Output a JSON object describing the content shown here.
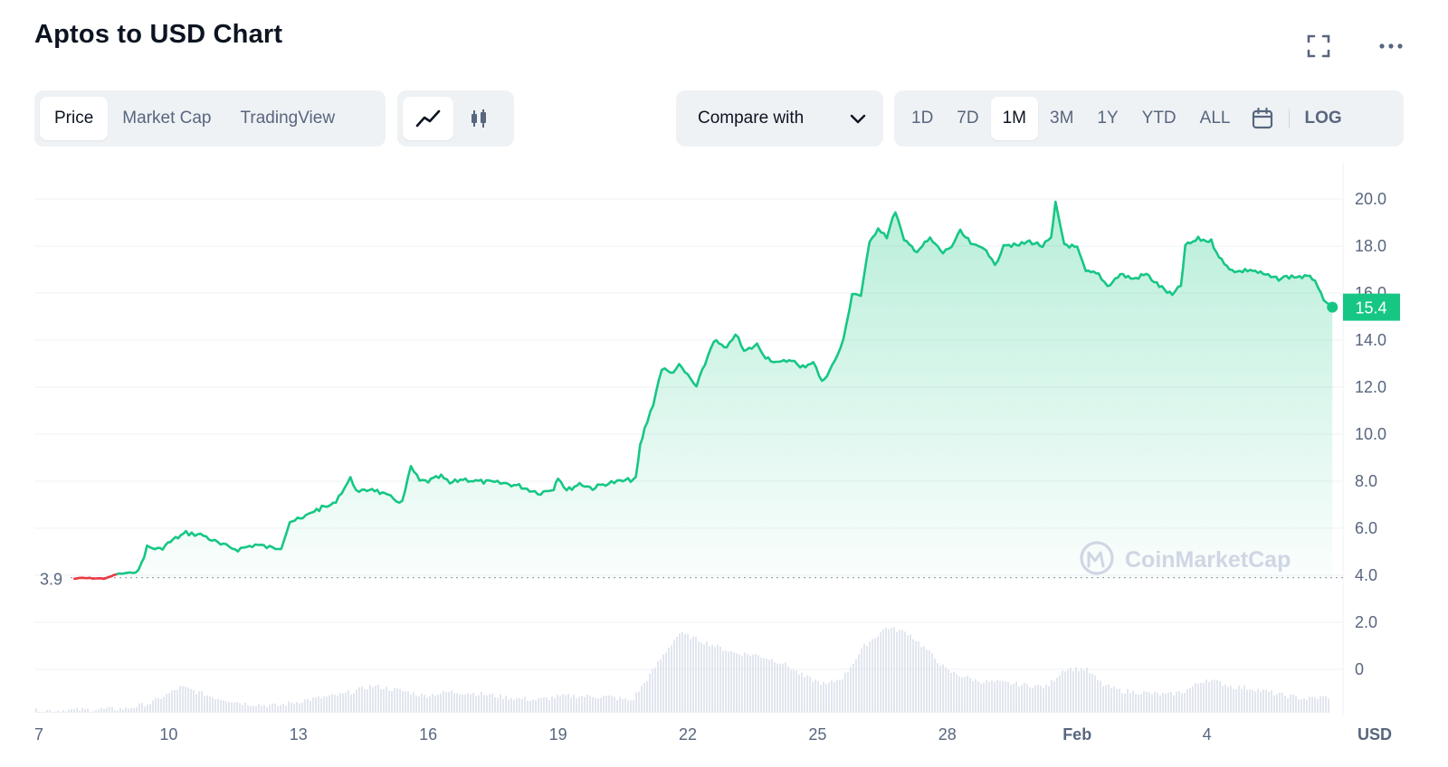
{
  "header": {
    "title": "Aptos to USD Chart"
  },
  "icons": {
    "fullscreen": "fullscreen-icon",
    "more": "more-dots-icon",
    "line": "line-chart-icon",
    "candle": "candlestick-icon",
    "calendar": "calendar-icon",
    "chevron": "chevron-down-icon"
  },
  "controls": {
    "metric_tabs": [
      {
        "label": "Price",
        "active": true
      },
      {
        "label": "Market Cap",
        "active": false
      },
      {
        "label": "TradingView",
        "active": false
      }
    ],
    "chart_type": "line",
    "compare_label": "Compare with",
    "range_tabs": [
      {
        "label": "1D"
      },
      {
        "label": "7D"
      },
      {
        "label": "1M",
        "active": true
      },
      {
        "label": "3M"
      },
      {
        "label": "1Y"
      },
      {
        "label": "YTD"
      },
      {
        "label": "ALL"
      }
    ],
    "log_label": "LOG"
  },
  "colors": {
    "up": "#16c784",
    "down": "#ea3943",
    "grid": "#eff2f5",
    "text": "#58667e",
    "volume": "#cfd6e4",
    "badge": "#16c784"
  },
  "watermark": "CoinMarketCap",
  "chart_data": {
    "type": "line",
    "y_ticks": [
      "20.0",
      "18.0",
      "16.0",
      "14.0",
      "12.0",
      "10.0",
      "8.0",
      "6.0",
      "4.0",
      "2.0",
      "0"
    ],
    "x_ticks": [
      "7",
      "10",
      "13",
      "16",
      "19",
      "22",
      "25",
      "28",
      "Feb",
      "4"
    ],
    "currency_label": "USD",
    "ylim": [
      0,
      20.8
    ],
    "open_price": 3.9,
    "open_label": "3.9",
    "last_price": 15.4,
    "last_label": "15.4",
    "price_series": [
      [
        7.8,
        3.85
      ],
      [
        8.0,
        3.88
      ],
      [
        8.3,
        3.87
      ],
      [
        8.5,
        3.86
      ],
      [
        8.6,
        3.9
      ],
      [
        8.8,
        4.05
      ],
      [
        9.1,
        4.1
      ],
      [
        9.3,
        4.15
      ],
      [
        9.5,
        5.2
      ],
      [
        9.8,
        5.1
      ],
      [
        10.1,
        5.5
      ],
      [
        10.4,
        5.8
      ],
      [
        10.8,
        5.7
      ],
      [
        11.2,
        5.3
      ],
      [
        11.6,
        5.1
      ],
      [
        12.0,
        5.3
      ],
      [
        12.4,
        5.15
      ],
      [
        12.6,
        5.2
      ],
      [
        12.8,
        6.3
      ],
      [
        13.1,
        6.4
      ],
      [
        13.3,
        6.7
      ],
      [
        13.6,
        6.9
      ],
      [
        13.8,
        7.0
      ],
      [
        14.2,
        8.1
      ],
      [
        14.4,
        7.5
      ],
      [
        14.7,
        7.7
      ],
      [
        15.0,
        7.4
      ],
      [
        15.4,
        7.1
      ],
      [
        15.6,
        8.6
      ],
      [
        15.8,
        8.0
      ],
      [
        16.0,
        8.0
      ],
      [
        16.3,
        8.2
      ],
      [
        16.5,
        7.9
      ],
      [
        16.8,
        8.1
      ],
      [
        17.1,
        8.0
      ],
      [
        17.4,
        7.95
      ],
      [
        17.8,
        7.9
      ],
      [
        18.1,
        7.8
      ],
      [
        18.4,
        7.6
      ],
      [
        18.6,
        7.5
      ],
      [
        18.9,
        7.7
      ],
      [
        19.0,
        8.2
      ],
      [
        19.2,
        7.6
      ],
      [
        19.5,
        7.9
      ],
      [
        19.8,
        7.7
      ],
      [
        20.1,
        7.9
      ],
      [
        20.5,
        8.0
      ],
      [
        20.8,
        8.1
      ],
      [
        20.9,
        9.5
      ],
      [
        21.0,
        10.2
      ],
      [
        21.2,
        11.3
      ],
      [
        21.4,
        12.8
      ],
      [
        21.6,
        12.6
      ],
      [
        21.8,
        12.9
      ],
      [
        22.0,
        12.5
      ],
      [
        22.2,
        12.0
      ],
      [
        22.4,
        13.0
      ],
      [
        22.6,
        14.0
      ],
      [
        22.9,
        13.6
      ],
      [
        23.1,
        14.3
      ],
      [
        23.3,
        13.5
      ],
      [
        23.6,
        13.8
      ],
      [
        23.8,
        13.3
      ],
      [
        24.1,
        13.0
      ],
      [
        24.4,
        13.2
      ],
      [
        24.6,
        12.8
      ],
      [
        24.9,
        13.1
      ],
      [
        25.1,
        12.2
      ],
      [
        25.4,
        13.1
      ],
      [
        25.6,
        14.0
      ],
      [
        25.8,
        16.0
      ],
      [
        26.0,
        15.9
      ],
      [
        26.2,
        18.1
      ],
      [
        26.4,
        18.8
      ],
      [
        26.6,
        18.4
      ],
      [
        26.8,
        19.5
      ],
      [
        27.0,
        18.2
      ],
      [
        27.3,
        17.8
      ],
      [
        27.6,
        18.3
      ],
      [
        27.9,
        17.7
      ],
      [
        28.1,
        18.0
      ],
      [
        28.3,
        18.6
      ],
      [
        28.6,
        18.0
      ],
      [
        28.9,
        17.9
      ],
      [
        29.1,
        17.1
      ],
      [
        29.3,
        18.1
      ],
      [
        29.6,
        18.0
      ],
      [
        29.9,
        18.2
      ],
      [
        30.2,
        18.0
      ],
      [
        30.4,
        18.3
      ],
      [
        30.5,
        19.8
      ],
      [
        30.7,
        18.1
      ],
      [
        31.0,
        17.9
      ],
      [
        31.2,
        16.9
      ],
      [
        31.5,
        16.8
      ],
      [
        31.7,
        16.3
      ],
      [
        32.0,
        16.8
      ],
      [
        32.3,
        16.6
      ],
      [
        32.6,
        16.8
      ],
      [
        32.9,
        16.3
      ],
      [
        33.2,
        15.9
      ],
      [
        33.4,
        16.3
      ],
      [
        33.5,
        18.0
      ],
      [
        33.8,
        18.3
      ],
      [
        34.1,
        18.2
      ],
      [
        34.4,
        17.2
      ],
      [
        34.7,
        16.9
      ],
      [
        35.0,
        17.0
      ],
      [
        35.3,
        16.8
      ],
      [
        35.6,
        16.6
      ],
      [
        35.9,
        16.7
      ],
      [
        36.2,
        16.7
      ],
      [
        36.5,
        16.6
      ],
      [
        36.7,
        15.6
      ],
      [
        36.9,
        15.4
      ]
    ],
    "volume_series": [
      [
        7.0,
        0.1
      ],
      [
        9.0,
        0.2
      ],
      [
        9.6,
        0.5
      ],
      [
        10.3,
        1.3
      ],
      [
        11.0,
        0.8
      ],
      [
        11.8,
        0.45
      ],
      [
        12.5,
        0.35
      ],
      [
        13.2,
        0.65
      ],
      [
        14.0,
        0.9
      ],
      [
        14.7,
        1.35
      ],
      [
        15.4,
        1.1
      ],
      [
        15.9,
        0.85
      ],
      [
        16.5,
        1.05
      ],
      [
        17.2,
        0.95
      ],
      [
        17.9,
        0.75
      ],
      [
        18.5,
        0.65
      ],
      [
        19.2,
        0.85
      ],
      [
        20.2,
        0.8
      ],
      [
        20.7,
        0.6
      ],
      [
        21.0,
        1.5
      ],
      [
        21.5,
        3.1
      ],
      [
        21.8,
        4.0
      ],
      [
        22.2,
        3.7
      ],
      [
        22.7,
        3.3
      ],
      [
        23.1,
        3.0
      ],
      [
        23.6,
        2.9
      ],
      [
        24.2,
        2.5
      ],
      [
        24.7,
        1.8
      ],
      [
        25.2,
        1.4
      ],
      [
        25.6,
        1.8
      ],
      [
        26.1,
        3.4
      ],
      [
        26.6,
        4.3
      ],
      [
        27.1,
        4.0
      ],
      [
        27.6,
        3.0
      ],
      [
        28.0,
        2.1
      ],
      [
        28.7,
        1.6
      ],
      [
        29.3,
        1.5
      ],
      [
        29.8,
        1.4
      ],
      [
        30.3,
        1.3
      ],
      [
        30.7,
        2.2
      ],
      [
        31.2,
        2.2
      ],
      [
        31.6,
        1.4
      ],
      [
        32.0,
        1.1
      ],
      [
        32.6,
        1.0
      ],
      [
        33.1,
        0.9
      ],
      [
        33.5,
        1.1
      ],
      [
        34.0,
        1.7
      ],
      [
        34.6,
        1.3
      ],
      [
        35.1,
        1.2
      ],
      [
        35.7,
        0.9
      ],
      [
        36.3,
        0.7
      ],
      [
        36.8,
        0.8
      ],
      [
        37.0,
        0.85
      ]
    ]
  }
}
